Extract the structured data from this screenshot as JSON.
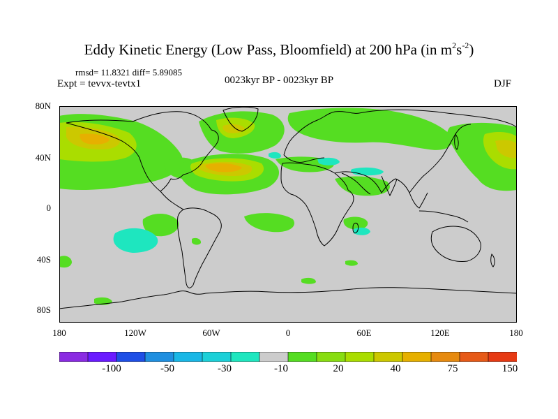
{
  "title": {
    "prefix": "Eddy Kinetic Energy (Low Pass, Bloomfield) at 200 hPa (in m",
    "sup1": "2",
    "mid": "s",
    "sup2": "-2",
    "suffix": ")"
  },
  "stats": "rmsd= 11.8321 diff= 5.89085",
  "expt": "Expt = tevvx-tevtx1",
  "period": "0023kyr BP - 0023kyr BP",
  "season": "DJF",
  "map": {
    "background_color": "#cccccc",
    "coast_color": "#000000",
    "y_ticks": [
      "80N",
      "40N",
      "0",
      "40S",
      "80S"
    ],
    "x_ticks": [
      "180",
      "120W",
      "60W",
      "0",
      "60E",
      "120E",
      "180"
    ]
  },
  "colorbar": {
    "colors": [
      "#8a2be2",
      "#6a1bff",
      "#1e4fe6",
      "#1f8fe0",
      "#19b7e6",
      "#1cd0d8",
      "#1ee6bf",
      "#cccccc",
      "#55dd22",
      "#88dd11",
      "#aadd00",
      "#ccc800",
      "#e6b000",
      "#e68a10",
      "#e65a18",
      "#e63a14"
    ],
    "labels": [
      "-100",
      "-50",
      "-30",
      "-10",
      "20",
      "40",
      "75",
      "150"
    ]
  }
}
